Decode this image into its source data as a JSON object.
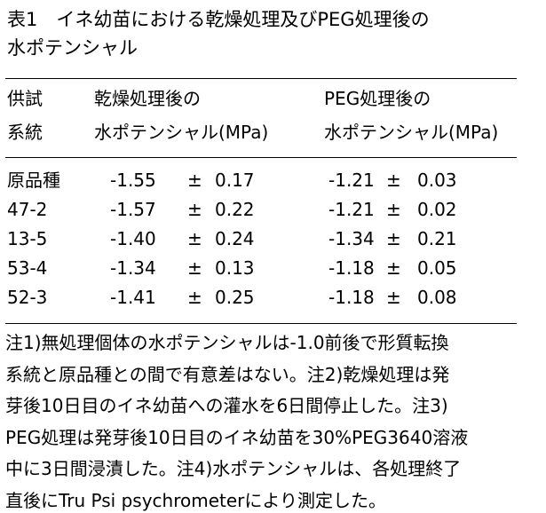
{
  "title": [
    "表1　イネ幼苗における乾燥処理及びPEG処理後の",
    "水ポテンシャル"
  ],
  "table": {
    "header": [
      [
        "供試",
        "系統"
      ],
      [
        "乾燥処理後の",
        "水ポテンシャル(MPa)"
      ],
      [
        "PEG処理後の",
        "水ポテンシャル(MPa)"
      ]
    ],
    "rows": [
      [
        "原品種",
        "-1.55",
        "±",
        "0.17",
        "-1.21",
        "±",
        "0.03"
      ],
      [
        "47-2",
        "-1.57",
        "±",
        "0.22",
        "-1.21",
        "±",
        "0.02"
      ],
      [
        "13-5",
        "-1.40",
        "±",
        "0.24",
        "-1.34",
        "±",
        "0.21"
      ],
      [
        "53-4",
        "-1.34",
        "±",
        "0.13",
        "-1.18",
        "±",
        "0.05"
      ],
      [
        "52-3",
        "-1.41",
        "±",
        "0.25",
        "-1.18",
        "±",
        "0.08"
      ]
    ]
  },
  "notes": [
    "注1)無処理個体の水ポテンシャルは-1.0前後で形質転換",
    "系統と原品種との間で有意差はない。注2)乾燥処理は発",
    "芽後10日目のイネ幼苗への灌水を6日間停止した。注3)",
    "PEG処理は発芽後10日目のイネ幼苗を30%PEG3640溶液",
    "中に3日間浸漬した。注4)水ポテンシャルは、各処理終了",
    "直後にTru Psi psychrometerにより測定した。"
  ]
}
